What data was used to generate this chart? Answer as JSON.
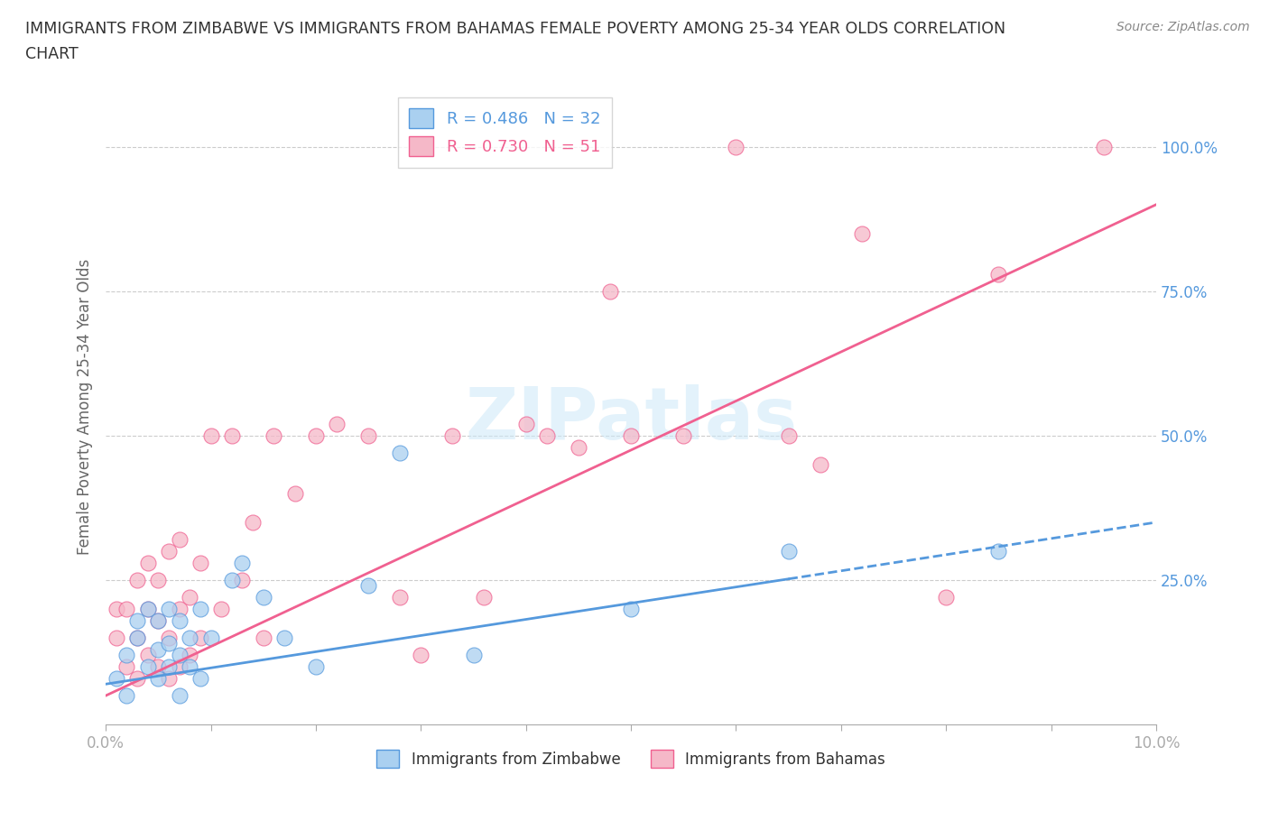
{
  "title": "IMMIGRANTS FROM ZIMBABWE VS IMMIGRANTS FROM BAHAMAS FEMALE POVERTY AMONG 25-34 YEAR OLDS CORRELATION\nCHART",
  "source": "Source: ZipAtlas.com",
  "ylabel": "Female Poverty Among 25-34 Year Olds",
  "xlim": [
    0.0,
    0.1
  ],
  "ylim": [
    0.0,
    1.1
  ],
  "yticks": [
    0.25,
    0.5,
    0.75,
    1.0
  ],
  "ytick_labels": [
    "25.0%",
    "50.0%",
    "75.0%",
    "100.0%"
  ],
  "xticks": [
    0.0,
    0.01,
    0.02,
    0.03,
    0.04,
    0.05,
    0.06,
    0.07,
    0.08,
    0.09,
    0.1
  ],
  "xtick_labels": [
    "0.0%",
    "",
    "",
    "",
    "",
    "",
    "",
    "",
    "",
    "",
    "10.0%"
  ],
  "zimbabwe_color": "#aad0f0",
  "bahamas_color": "#f5b8c8",
  "zimbabwe_line_color": "#5599dd",
  "bahamas_line_color": "#f06090",
  "zimbabwe_R": 0.486,
  "zimbabwe_N": 32,
  "bahamas_R": 0.73,
  "bahamas_N": 51,
  "zimbabwe_x": [
    0.001,
    0.002,
    0.002,
    0.003,
    0.003,
    0.004,
    0.004,
    0.005,
    0.005,
    0.005,
    0.006,
    0.006,
    0.006,
    0.007,
    0.007,
    0.007,
    0.008,
    0.008,
    0.009,
    0.009,
    0.01,
    0.012,
    0.013,
    0.015,
    0.017,
    0.02,
    0.025,
    0.028,
    0.035,
    0.05,
    0.065,
    0.085
  ],
  "zimbabwe_y": [
    0.08,
    0.12,
    0.05,
    0.15,
    0.18,
    0.1,
    0.2,
    0.08,
    0.13,
    0.18,
    0.1,
    0.14,
    0.2,
    0.05,
    0.12,
    0.18,
    0.1,
    0.15,
    0.08,
    0.2,
    0.15,
    0.25,
    0.28,
    0.22,
    0.15,
    0.1,
    0.24,
    0.47,
    0.12,
    0.2,
    0.3,
    0.3
  ],
  "bahamas_x": [
    0.001,
    0.001,
    0.002,
    0.002,
    0.003,
    0.003,
    0.003,
    0.004,
    0.004,
    0.004,
    0.005,
    0.005,
    0.005,
    0.006,
    0.006,
    0.006,
    0.007,
    0.007,
    0.007,
    0.008,
    0.008,
    0.009,
    0.009,
    0.01,
    0.011,
    0.012,
    0.013,
    0.014,
    0.015,
    0.016,
    0.018,
    0.02,
    0.022,
    0.025,
    0.028,
    0.03,
    0.033,
    0.036,
    0.04,
    0.042,
    0.045,
    0.048,
    0.05,
    0.055,
    0.06,
    0.065,
    0.068,
    0.072,
    0.08,
    0.085,
    0.095
  ],
  "bahamas_y": [
    0.15,
    0.2,
    0.1,
    0.2,
    0.08,
    0.15,
    0.25,
    0.12,
    0.2,
    0.28,
    0.1,
    0.18,
    0.25,
    0.08,
    0.15,
    0.3,
    0.1,
    0.2,
    0.32,
    0.12,
    0.22,
    0.15,
    0.28,
    0.5,
    0.2,
    0.5,
    0.25,
    0.35,
    0.15,
    0.5,
    0.4,
    0.5,
    0.52,
    0.5,
    0.22,
    0.12,
    0.5,
    0.22,
    0.52,
    0.5,
    0.48,
    0.75,
    0.5,
    0.5,
    1.0,
    0.5,
    0.45,
    0.85,
    0.22,
    0.78,
    1.0
  ],
  "zim_line_x0": 0.0,
  "zim_line_y0": 0.07,
  "zim_line_x1": 0.1,
  "zim_line_y1": 0.35,
  "bah_line_x0": 0.0,
  "bah_line_y0": 0.05,
  "bah_line_x1": 0.1,
  "bah_line_y1": 0.9,
  "watermark": "ZIPatlas",
  "background_color": "#ffffff",
  "grid_color": "#cccccc"
}
